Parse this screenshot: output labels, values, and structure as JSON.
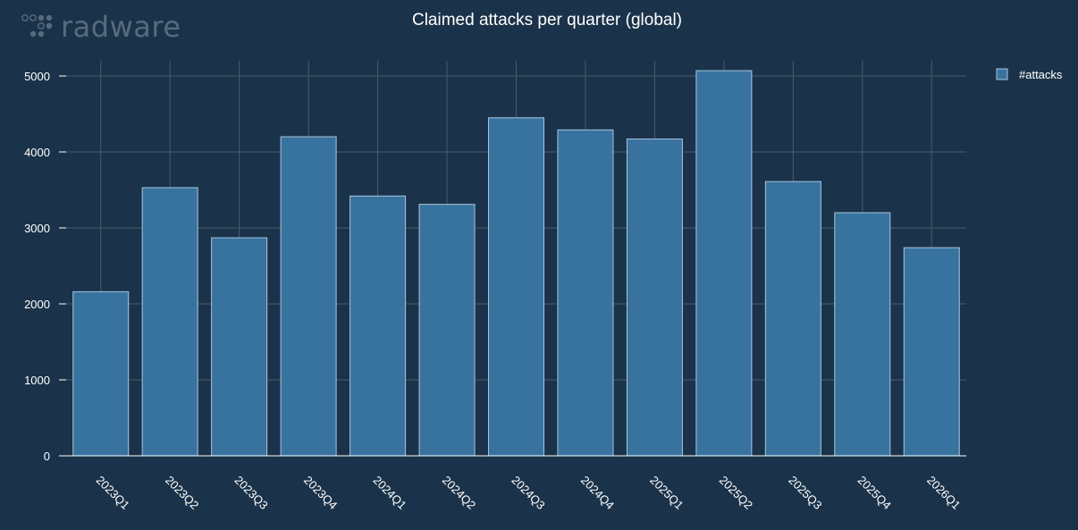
{
  "brand": {
    "logo_text": "radware",
    "logo_icon": "radware-dots-icon"
  },
  "colors": {
    "background": "#1b334a",
    "bar_fill": "#3873a0",
    "bar_stroke": "#a8c4dc",
    "grid": "#4a5b6a",
    "text": "#ffffff"
  },
  "chart_data": {
    "type": "bar",
    "title": "Claimed attacks per quarter (global)",
    "xlabel": "",
    "ylabel": "",
    "categories": [
      "2023Q1",
      "2023Q2",
      "2023Q3",
      "2023Q4",
      "2024Q1",
      "2024Q2",
      "2024Q3",
      "2024Q4",
      "2025Q1",
      "2025Q2",
      "2025Q3",
      "2025Q4",
      "2026Q1"
    ],
    "series": [
      {
        "name": "#attacks",
        "values": [
          2160,
          3530,
          2870,
          4200,
          3420,
          3310,
          4450,
          4290,
          4170,
          5070,
          3610,
          3200,
          2740
        ]
      }
    ],
    "ylim": [
      0,
      5200
    ],
    "yticks": [
      0,
      1000,
      2000,
      3000,
      4000,
      5000
    ],
    "grid": true,
    "legend_position": "top-right"
  }
}
